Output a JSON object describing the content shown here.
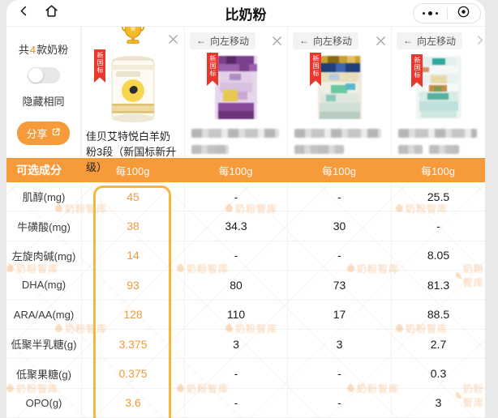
{
  "nav": {
    "title": "比奶粉"
  },
  "sidebar": {
    "count_prefix": "共",
    "count": "4",
    "count_suffix": "款奶粉",
    "hide_label": "隐藏相同",
    "share_label": "分享"
  },
  "products": {
    "move_label": "向左移动",
    "badge": "新国标",
    "champion_name": "佳贝艾特悦白羊奶粉3段（新国标新升级）"
  },
  "table": {
    "ingredient_header": "可选成分",
    "unit_label": "每100g",
    "rows": [
      {
        "label": "肌醇(mg)",
        "values": [
          "45",
          "-",
          "-",
          "25.5"
        ]
      },
      {
        "label": "牛磺酸(mg)",
        "values": [
          "38",
          "34.3",
          "30",
          "-"
        ]
      },
      {
        "label": "左旋肉碱(mg)",
        "values": [
          "14",
          "-",
          "-",
          "8.05"
        ]
      },
      {
        "label": "DHA(mg)",
        "values": [
          "93",
          "80",
          "73",
          "81.3"
        ]
      },
      {
        "label": "ARA/AA(mg)",
        "values": [
          "128",
          "110",
          "17",
          "88.5"
        ]
      },
      {
        "label": "低聚半乳糖(g)",
        "values": [
          "3.375",
          "3",
          "3",
          "2.7"
        ]
      },
      {
        "label": "低聚果糖(g)",
        "values": [
          "0.375",
          "-",
          "-",
          "0.3"
        ]
      },
      {
        "label": "OPO(g)",
        "values": [
          "3.6",
          "-",
          "-",
          "3"
        ]
      }
    ]
  },
  "watermark": {
    "text": "奶粉智库"
  },
  "colors": {
    "accent": "#F79A3A",
    "highlight_border": "#F2B93F",
    "value_orange": "#EF9A3C",
    "ribbon_red": "#E8372C"
  }
}
